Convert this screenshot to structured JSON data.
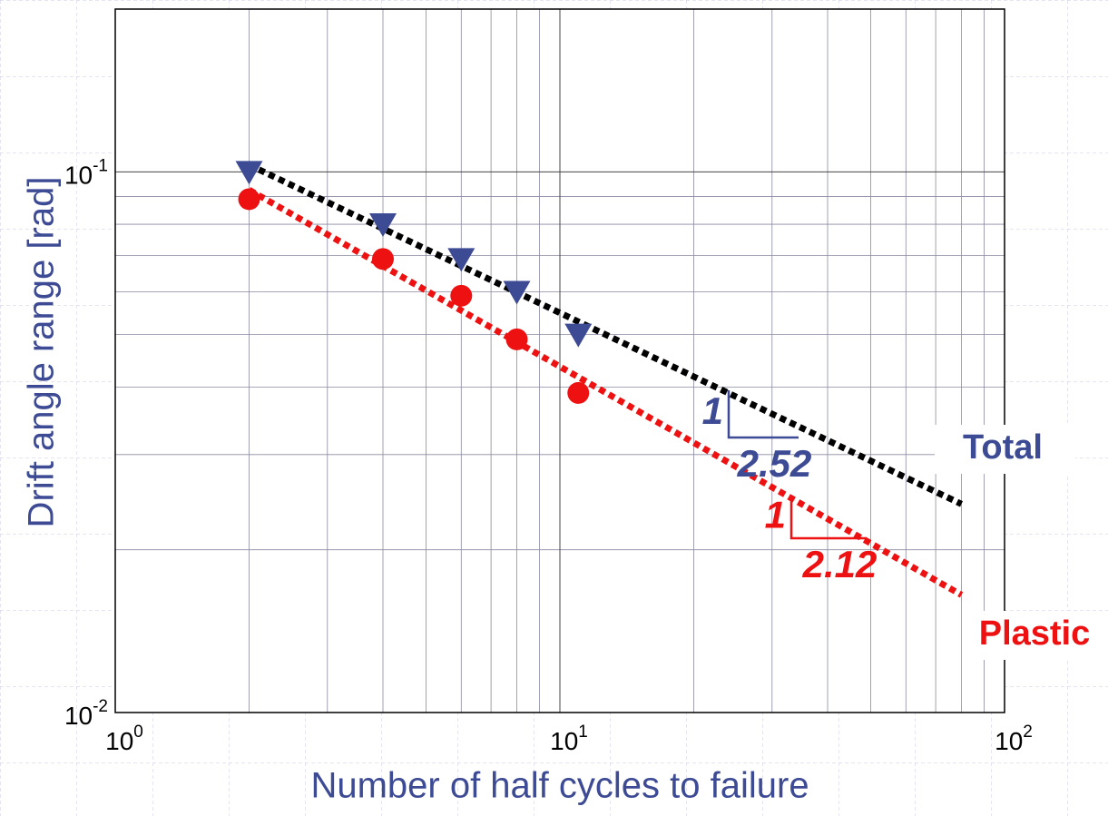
{
  "chart_data": {
    "type": "scatter",
    "xlabel": "Number of half cycles to failure",
    "ylabel": "Drift angle range [rad]",
    "xscale": "log",
    "yscale": "log",
    "xlim": [
      1,
      100
    ],
    "ylim": [
      0.01,
      0.2
    ],
    "xticks": [
      {
        "value": 1,
        "label": "10",
        "exponent": "0"
      },
      {
        "value": 10,
        "label": "10",
        "exponent": "1"
      },
      {
        "value": 100,
        "label": "10",
        "exponent": "2"
      }
    ],
    "yticks": [
      {
        "value": 0.01,
        "label": "10",
        "exponent": "-2"
      },
      {
        "value": 0.1,
        "label": "10",
        "exponent": "-1"
      }
    ],
    "grid": true,
    "series": [
      {
        "name": "Total",
        "marker": "triangle",
        "color": "#3d4a94",
        "x": [
          2,
          4,
          6,
          8,
          11
        ],
        "values": [
          0.1,
          0.08,
          0.069,
          0.06,
          0.05
        ],
        "fit": {
          "color": "#000000",
          "x": [
            2,
            80
          ],
          "values": [
            0.103,
            0.0243
          ]
        }
      },
      {
        "name": "Plastic",
        "marker": "circle",
        "color": "#ee1111",
        "x": [
          2,
          4,
          6,
          8,
          11
        ],
        "values": [
          0.089,
          0.069,
          0.059,
          0.049,
          0.039
        ],
        "fit": {
          "color": "#ee1111",
          "x": [
            2,
            80
          ],
          "values": [
            0.0926,
            0.0165
          ]
        }
      }
    ],
    "annotations": [
      {
        "rise": "1",
        "run": "2.52",
        "color": "#3d4a94"
      },
      {
        "rise": "1",
        "run": "2.12",
        "color": "#ee1111"
      }
    ]
  }
}
